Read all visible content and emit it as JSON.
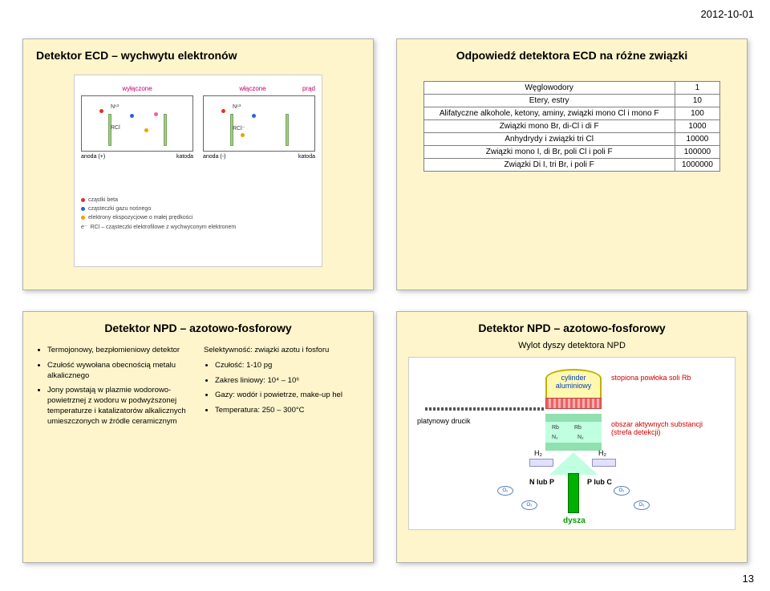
{
  "date": "2012-10-01",
  "page_number": "13",
  "slide_tl": {
    "title": "Detektor ECD – wychwytu elektronów",
    "diagram": {
      "bg": "#ffffff",
      "left_label": "wyłączone",
      "right_label": "włączone",
      "right_label2": "prąd",
      "n63_left": "N⁶³",
      "rci_left": "RCl",
      "n63_right": "N⁶³",
      "rci_right": "RCl⁻",
      "anode_l": "anoda (+)",
      "cathode_l": "katoda",
      "anode_r": "anoda (-)",
      "cathode_r": "katoda",
      "legend": [
        {
          "color": "#e03030",
          "text": "cząstki beta"
        },
        {
          "color": "#3060d0",
          "text": "cząsteczki gazu nośnego"
        },
        {
          "color": "#f0a000",
          "text": "elektrony ekspozycjowe o małej prędkości"
        },
        {
          "color": "#e03030",
          "text": "RCl – cząsteczki elektrofilowe z wychwyconym elektronem"
        }
      ]
    }
  },
  "slide_tr": {
    "title": "Odpowiedź detektora ECD na różne związki",
    "rows": [
      [
        "Węglowodory",
        "1"
      ],
      [
        "Etery, estry",
        "10"
      ],
      [
        "Alifatyczne alkohole, ketony, aminy, związki mono Cl i mono F",
        "100"
      ],
      [
        "Związki mono Br, di-Cl i di F",
        "1000"
      ],
      [
        "Anhydrydy i związki tri Cl",
        "10000"
      ],
      [
        "Związki mono I, di Br, poli Cl i poli F",
        "100000"
      ],
      [
        "Związki Di I, tri Br, i poli F",
        "1000000"
      ]
    ]
  },
  "slide_bl": {
    "title": "Detektor NPD – azotowo-fosforowy",
    "col1": [
      "Termojonowy, bezpłomieniowy detektor",
      "Czułość wywołana obecnością metalu alkalicznego",
      "Jony powstają w plazmie wodorowo-powietrznej z wodoru w podwyższonej temperaturze i katalizatorów alkalicznych umieszczonych w źródle ceramicznym"
    ],
    "col2_heading": "Selektywność: związki azotu i fosforu",
    "col2": [
      "Czułość: 1-10 pg",
      "Zakres liniowy: 10⁴ – 10⁶",
      "Gazy: wodór i powietrze, make-up hel",
      "Temperatura: 250 – 300°C"
    ]
  },
  "slide_br": {
    "title": "Detektor NPD – azotowo-fosforowy",
    "subtitle": "Wylot dyszy detektora NPD",
    "labels": {
      "cylinder": "cylinder\naluminiowy",
      "rb_coat": "stopiona powłoka soli Rb",
      "pt_wire": "platynowy drucik",
      "active": "obszar aktywnych substancji\n(strefa detekcji)",
      "h2": "H₂",
      "n2": "N₂",
      "o2": "O₂",
      "rb": "Rb",
      "nlub": "N lub P",
      "plub": "P lub C",
      "dysz": "dysza"
    },
    "colors": {
      "cylinder_fill": "#fff8b0",
      "rb_fill": "#f06060",
      "zone_fill": "#c0ffe0",
      "nozzle_fill": "#00b000"
    }
  }
}
